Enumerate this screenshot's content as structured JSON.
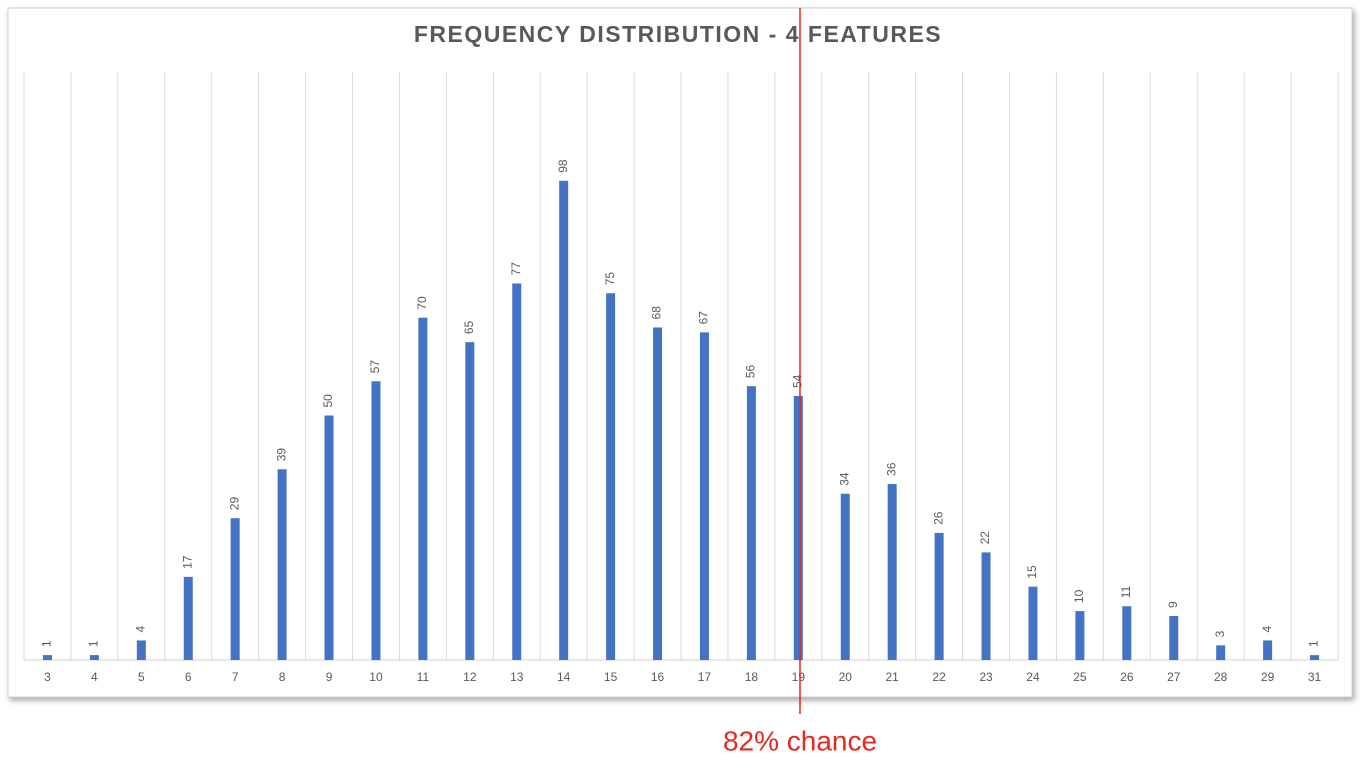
{
  "chart_data": {
    "type": "bar",
    "title": "FREQUENCY DISTRIBUTION - 4 FEATURES",
    "categories": [
      "3",
      "4",
      "5",
      "6",
      "7",
      "8",
      "9",
      "10",
      "11",
      "12",
      "13",
      "14",
      "15",
      "16",
      "17",
      "18",
      "19",
      "20",
      "21",
      "22",
      "23",
      "24",
      "25",
      "26",
      "27",
      "28",
      "29",
      "31"
    ],
    "values": [
      1,
      1,
      4,
      17,
      29,
      39,
      50,
      57,
      70,
      65,
      77,
      98,
      75,
      68,
      67,
      56,
      54,
      34,
      36,
      26,
      22,
      15,
      10,
      11,
      9,
      3,
      4,
      1
    ],
    "color": "#4472c4",
    "annotation": "82% chance",
    "annotation_color": "#e8281e"
  }
}
